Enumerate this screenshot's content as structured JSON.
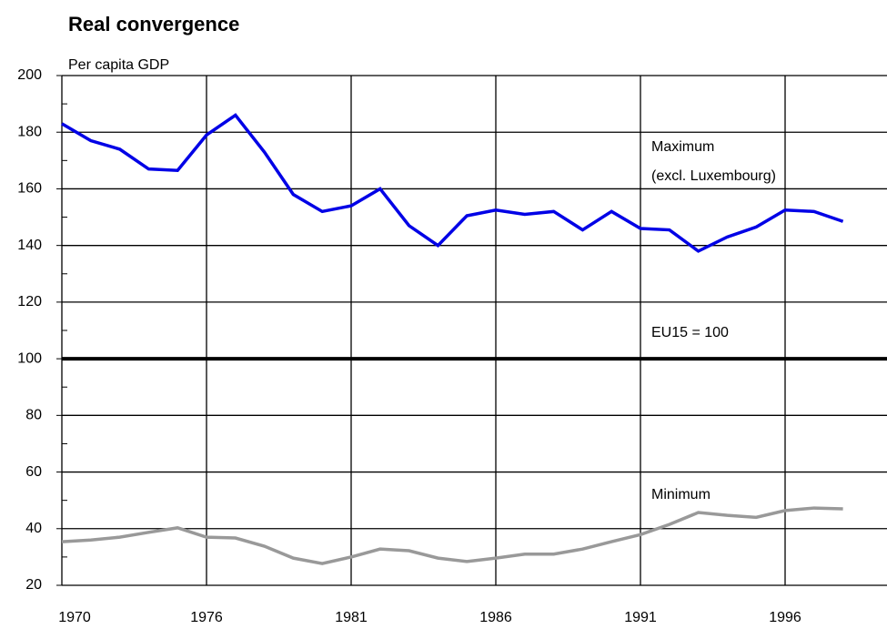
{
  "chart_data": {
    "type": "line",
    "title": "Real convergence",
    "y_label": "Per capita GDP",
    "annotations": [
      "Maximum",
      "(excl. Luxembourg)",
      "EU15 = 100",
      "Minimum"
    ],
    "categories": [
      "1970",
      null,
      null,
      null,
      null,
      "1976",
      null,
      null,
      null,
      null,
      "1981",
      null,
      null,
      null,
      null,
      "1986",
      null,
      null,
      null,
      null,
      "1991",
      null,
      null,
      null,
      null,
      "1996",
      null,
      null
    ],
    "series": [
      {
        "name": "Maximum",
        "color": "#0000e6",
        "values": [
          183,
          177,
          174,
          167,
          166.5,
          179,
          186,
          173,
          158,
          152,
          154,
          160,
          147,
          140,
          150.5,
          152.5,
          151,
          152,
          145.5,
          152,
          146,
          145.5,
          138,
          143,
          146.5,
          152.5,
          152,
          148.5
        ]
      },
      {
        "name": "Minimum",
        "color": "#999999",
        "values": [
          35.4,
          36,
          37,
          38.7,
          40.3,
          37,
          36.7,
          33.8,
          29.6,
          27.7,
          30,
          32.8,
          32.2,
          29.6,
          28.4,
          29.6,
          31,
          31,
          32.8,
          35.4,
          37.9,
          41.5,
          45.7,
          44.7,
          44,
          46.4,
          47.3,
          47
        ]
      }
    ],
    "ylim": [
      20,
      200
    ],
    "yticks": [
      20,
      40,
      60,
      80,
      100,
      120,
      140,
      160,
      180,
      200
    ],
    "yticks_minor": [
      30,
      50,
      70,
      90,
      110,
      130,
      150,
      170,
      190
    ],
    "reference_line": 100,
    "grid": true
  }
}
